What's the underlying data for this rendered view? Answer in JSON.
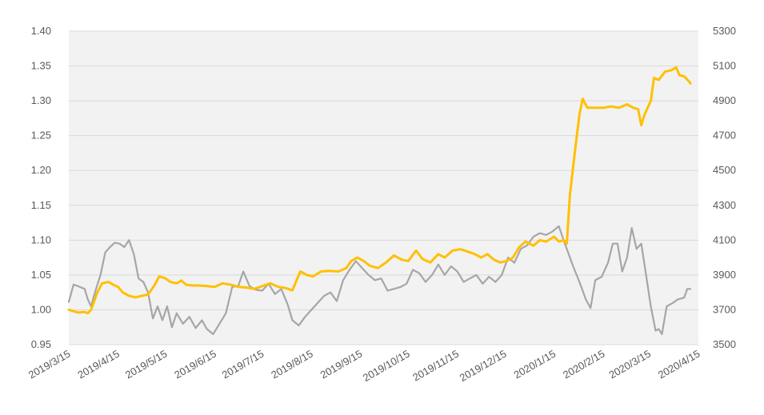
{
  "chart_data": {
    "type": "line",
    "title": "",
    "xlabel": "",
    "ylabel_left": "",
    "ylabel_right": "",
    "grid": true,
    "legend": "none",
    "plot_background": "#f2f2f2",
    "gridline_color": "#d9d9d9",
    "x_range": [
      "2019-03-15",
      "2020-04-15"
    ],
    "x_ticks": [
      "2019/3/15",
      "2019/4/15",
      "2019/5/15",
      "2019/6/15",
      "2019/7/15",
      "2019/8/15",
      "2019/9/15",
      "2019/10/15",
      "2019/11/15",
      "2019/12/15",
      "2020/1/15",
      "2020/2/15",
      "2020/3/15",
      "2020/4/15"
    ],
    "y_left": {
      "min": 0.95,
      "max": 1.4,
      "ticks": [
        "0.95",
        "1.00",
        "1.05",
        "1.10",
        "1.15",
        "1.20",
        "1.25",
        "1.30",
        "1.35",
        "1.40"
      ]
    },
    "y_right": {
      "min": 3500,
      "max": 5300,
      "ticks": [
        "3500",
        "3700",
        "3900",
        "4100",
        "4300",
        "4500",
        "4700",
        "4900",
        "5100",
        "5300"
      ]
    },
    "series": [
      {
        "axis": "left",
        "color": "#ffc000",
        "points": [
          [
            "2019-03-15",
            1.0
          ],
          [
            "2019-03-18",
            0.998
          ],
          [
            "2019-03-21",
            0.996
          ],
          [
            "2019-03-25",
            0.997
          ],
          [
            "2019-03-27",
            0.995
          ],
          [
            "2019-03-29",
            1.0
          ],
          [
            "2019-04-02",
            1.025
          ],
          [
            "2019-04-05",
            1.038
          ],
          [
            "2019-04-09",
            1.04
          ],
          [
            "2019-04-12",
            1.036
          ],
          [
            "2019-04-15",
            1.033
          ],
          [
            "2019-04-18",
            1.025
          ],
          [
            "2019-04-22",
            1.02
          ],
          [
            "2019-04-26",
            1.018
          ],
          [
            "2019-04-30",
            1.02
          ],
          [
            "2019-05-04",
            1.022
          ],
          [
            "2019-05-08",
            1.035
          ],
          [
            "2019-05-11",
            1.048
          ],
          [
            "2019-05-15",
            1.045
          ],
          [
            "2019-05-18",
            1.04
          ],
          [
            "2019-05-22",
            1.038
          ],
          [
            "2019-05-25",
            1.042
          ],
          [
            "2019-05-28",
            1.036
          ],
          [
            "2019-06-01",
            1.035
          ],
          [
            "2019-06-05",
            1.035
          ],
          [
            "2019-06-10",
            1.034
          ],
          [
            "2019-06-15",
            1.033
          ],
          [
            "2019-06-20",
            1.038
          ],
          [
            "2019-06-25",
            1.036
          ],
          [
            "2019-06-30",
            1.033
          ],
          [
            "2019-07-05",
            1.032
          ],
          [
            "2019-07-10",
            1.03
          ],
          [
            "2019-07-15",
            1.034
          ],
          [
            "2019-07-20",
            1.038
          ],
          [
            "2019-07-25",
            1.033
          ],
          [
            "2019-07-30",
            1.031
          ],
          [
            "2019-08-03",
            1.028
          ],
          [
            "2019-08-08",
            1.055
          ],
          [
            "2019-08-12",
            1.05
          ],
          [
            "2019-08-16",
            1.048
          ],
          [
            "2019-08-21",
            1.055
          ],
          [
            "2019-08-26",
            1.056
          ],
          [
            "2019-09-01",
            1.055
          ],
          [
            "2019-09-06",
            1.06
          ],
          [
            "2019-09-09",
            1.07
          ],
          [
            "2019-09-13",
            1.075
          ],
          [
            "2019-09-17",
            1.07
          ],
          [
            "2019-09-21",
            1.063
          ],
          [
            "2019-09-26",
            1.06
          ],
          [
            "2019-10-01",
            1.068
          ],
          [
            "2019-10-06",
            1.078
          ],
          [
            "2019-10-11",
            1.072
          ],
          [
            "2019-10-15",
            1.07
          ],
          [
            "2019-10-20",
            1.085
          ],
          [
            "2019-10-24",
            1.073
          ],
          [
            "2019-10-29",
            1.068
          ],
          [
            "2019-11-03",
            1.08
          ],
          [
            "2019-11-07",
            1.075
          ],
          [
            "2019-11-12",
            1.085
          ],
          [
            "2019-11-17",
            1.087
          ],
          [
            "2019-11-21",
            1.084
          ],
          [
            "2019-11-26",
            1.08
          ],
          [
            "2019-11-30",
            1.075
          ],
          [
            "2019-12-04",
            1.08
          ],
          [
            "2019-12-08",
            1.072
          ],
          [
            "2019-12-12",
            1.068
          ],
          [
            "2019-12-16",
            1.07
          ],
          [
            "2019-12-20",
            1.075
          ],
          [
            "2019-12-24",
            1.09
          ],
          [
            "2019-12-28",
            1.098
          ],
          [
            "2020-01-02",
            1.092
          ],
          [
            "2020-01-06",
            1.1
          ],
          [
            "2020-01-10",
            1.098
          ],
          [
            "2020-01-15",
            1.105
          ],
          [
            "2020-01-18",
            1.098
          ],
          [
            "2020-01-21",
            1.1
          ],
          [
            "2020-01-23",
            1.095
          ],
          [
            "2020-01-25",
            1.165
          ],
          [
            "2020-01-28",
            1.225
          ],
          [
            "2020-01-31",
            1.28
          ],
          [
            "2020-02-02",
            1.303
          ],
          [
            "2020-02-05",
            1.29
          ],
          [
            "2020-02-10",
            1.29
          ],
          [
            "2020-02-15",
            1.29
          ],
          [
            "2020-02-20",
            1.292
          ],
          [
            "2020-02-25",
            1.29
          ],
          [
            "2020-03-01",
            1.295
          ],
          [
            "2020-03-05",
            1.29
          ],
          [
            "2020-03-08",
            1.288
          ],
          [
            "2020-03-10",
            1.265
          ],
          [
            "2020-03-12",
            1.28
          ],
          [
            "2020-03-16",
            1.3
          ],
          [
            "2020-03-18",
            1.333
          ],
          [
            "2020-03-21",
            1.33
          ],
          [
            "2020-03-25",
            1.342
          ],
          [
            "2020-03-29",
            1.344
          ],
          [
            "2020-04-01",
            1.348
          ],
          [
            "2020-04-03",
            1.337
          ],
          [
            "2020-04-06",
            1.335
          ],
          [
            "2020-04-09",
            1.328
          ],
          [
            "2020-04-10",
            1.325
          ]
        ]
      },
      {
        "axis": "right",
        "color": "#a6a6a6",
        "points": [
          [
            "2019-03-15",
            3745
          ],
          [
            "2019-03-18",
            3845
          ],
          [
            "2019-03-21",
            3835
          ],
          [
            "2019-03-25",
            3820
          ],
          [
            "2019-03-27",
            3760
          ],
          [
            "2019-03-29",
            3720
          ],
          [
            "2019-04-01",
            3815
          ],
          [
            "2019-04-04",
            3900
          ],
          [
            "2019-04-07",
            4030
          ],
          [
            "2019-04-10",
            4060
          ],
          [
            "2019-04-13",
            4085
          ],
          [
            "2019-04-16",
            4080
          ],
          [
            "2019-04-19",
            4060
          ],
          [
            "2019-04-22",
            4100
          ],
          [
            "2019-04-25",
            4020
          ],
          [
            "2019-04-28",
            3880
          ],
          [
            "2019-05-01",
            3860
          ],
          [
            "2019-05-04",
            3800
          ],
          [
            "2019-05-07",
            3650
          ],
          [
            "2019-05-10",
            3720
          ],
          [
            "2019-05-13",
            3640
          ],
          [
            "2019-05-16",
            3720
          ],
          [
            "2019-05-19",
            3600
          ],
          [
            "2019-05-22",
            3680
          ],
          [
            "2019-05-26",
            3620
          ],
          [
            "2019-05-30",
            3660
          ],
          [
            "2019-06-03",
            3595
          ],
          [
            "2019-06-07",
            3640
          ],
          [
            "2019-06-10",
            3590
          ],
          [
            "2019-06-14",
            3560
          ],
          [
            "2019-06-18",
            3620
          ],
          [
            "2019-06-22",
            3680
          ],
          [
            "2019-06-26",
            3830
          ],
          [
            "2019-06-30",
            3840
          ],
          [
            "2019-07-03",
            3920
          ],
          [
            "2019-07-07",
            3835
          ],
          [
            "2019-07-11",
            3815
          ],
          [
            "2019-07-15",
            3810
          ],
          [
            "2019-07-19",
            3850
          ],
          [
            "2019-07-23",
            3790
          ],
          [
            "2019-07-27",
            3820
          ],
          [
            "2019-07-31",
            3730
          ],
          [
            "2019-08-03",
            3640
          ],
          [
            "2019-08-07",
            3610
          ],
          [
            "2019-08-11",
            3660
          ],
          [
            "2019-08-15",
            3700
          ],
          [
            "2019-08-19",
            3740
          ],
          [
            "2019-08-23",
            3780
          ],
          [
            "2019-08-27",
            3800
          ],
          [
            "2019-08-31",
            3750
          ],
          [
            "2019-09-04",
            3870
          ],
          [
            "2019-09-08",
            3930
          ],
          [
            "2019-09-12",
            3980
          ],
          [
            "2019-09-16",
            3940
          ],
          [
            "2019-09-20",
            3900
          ],
          [
            "2019-09-24",
            3870
          ],
          [
            "2019-09-28",
            3880
          ],
          [
            "2019-10-02",
            3810
          ],
          [
            "2019-10-06",
            3820
          ],
          [
            "2019-10-10",
            3830
          ],
          [
            "2019-10-14",
            3850
          ],
          [
            "2019-10-18",
            3930
          ],
          [
            "2019-10-22",
            3910
          ],
          [
            "2019-10-26",
            3860
          ],
          [
            "2019-10-30",
            3900
          ],
          [
            "2019-11-03",
            3960
          ],
          [
            "2019-11-07",
            3900
          ],
          [
            "2019-11-11",
            3950
          ],
          [
            "2019-11-15",
            3920
          ],
          [
            "2019-11-19",
            3860
          ],
          [
            "2019-11-23",
            3880
          ],
          [
            "2019-11-27",
            3900
          ],
          [
            "2019-12-01",
            3850
          ],
          [
            "2019-12-05",
            3890
          ],
          [
            "2019-12-09",
            3860
          ],
          [
            "2019-12-13",
            3900
          ],
          [
            "2019-12-17",
            4000
          ],
          [
            "2019-12-21",
            3970
          ],
          [
            "2019-12-25",
            4050
          ],
          [
            "2019-12-29",
            4070
          ],
          [
            "2020-01-02",
            4120
          ],
          [
            "2020-01-06",
            4140
          ],
          [
            "2020-01-10",
            4130
          ],
          [
            "2020-01-14",
            4150
          ],
          [
            "2020-01-18",
            4180
          ],
          [
            "2020-01-21",
            4100
          ],
          [
            "2020-01-23",
            4050
          ],
          [
            "2020-01-27",
            3950
          ],
          [
            "2020-01-31",
            3860
          ],
          [
            "2020-02-04",
            3760
          ],
          [
            "2020-02-07",
            3710
          ],
          [
            "2020-02-10",
            3870
          ],
          [
            "2020-02-14",
            3890
          ],
          [
            "2020-02-18",
            3970
          ],
          [
            "2020-02-21",
            4080
          ],
          [
            "2020-02-24",
            4080
          ],
          [
            "2020-02-27",
            3920
          ],
          [
            "2020-03-01",
            4000
          ],
          [
            "2020-03-04",
            4170
          ],
          [
            "2020-03-07",
            4050
          ],
          [
            "2020-03-10",
            4080
          ],
          [
            "2020-03-13",
            3900
          ],
          [
            "2020-03-16",
            3720
          ],
          [
            "2020-03-19",
            3580
          ],
          [
            "2020-03-21",
            3590
          ],
          [
            "2020-03-23",
            3560
          ],
          [
            "2020-03-26",
            3720
          ],
          [
            "2020-03-30",
            3740
          ],
          [
            "2020-04-02",
            3760
          ],
          [
            "2020-04-06",
            3770
          ],
          [
            "2020-04-08",
            3820
          ],
          [
            "2020-04-10",
            3820
          ]
        ]
      }
    ]
  }
}
